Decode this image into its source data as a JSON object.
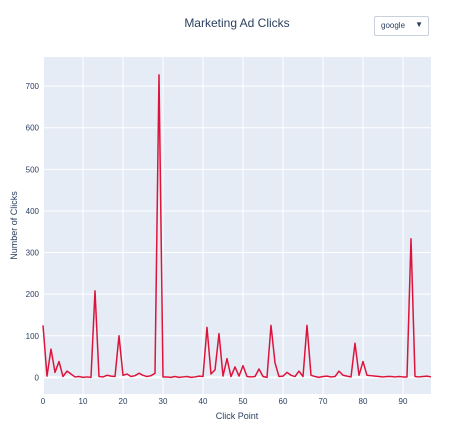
{
  "header": {
    "title": "Marketing Ad Clicks"
  },
  "dropdown": {
    "selected": "google",
    "caret": "▼"
  },
  "colors": {
    "plot_bg": "#e5ecf6",
    "grid": "#ffffff",
    "line": "#dc143c",
    "text": "#2a3f5f"
  },
  "chart_data": {
    "type": "line",
    "title": "Marketing Ad Clicks",
    "xlabel": "Click Point",
    "ylabel": "Number of Clicks",
    "xlim": [
      0,
      97
    ],
    "ylim": [
      -40,
      770
    ],
    "xticks": [
      0,
      10,
      20,
      30,
      40,
      50,
      60,
      70,
      80,
      90
    ],
    "yticks": [
      0,
      100,
      200,
      300,
      400,
      500,
      600,
      700
    ],
    "grid": true,
    "series": [
      {
        "x": [
          0,
          1,
          2,
          3,
          4,
          5,
          6,
          7,
          8,
          9,
          10,
          11,
          12,
          13,
          14,
          15,
          16,
          17,
          18,
          19,
          20,
          21,
          22,
          23,
          24,
          25,
          26,
          27,
          28,
          29,
          30,
          31,
          32,
          33,
          34,
          35,
          36,
          37,
          38,
          39,
          40,
          41,
          42,
          43,
          44,
          45,
          46,
          47,
          48,
          49,
          50,
          51,
          52,
          53,
          54,
          55,
          56,
          57,
          58,
          59,
          60,
          61,
          62,
          63,
          64,
          65,
          66,
          67,
          68,
          69,
          70,
          71,
          72,
          73,
          74,
          75,
          76,
          77,
          78,
          79,
          80,
          81,
          82,
          83,
          84,
          85,
          86,
          87,
          88,
          89,
          90,
          91,
          92,
          93,
          94,
          95,
          96,
          97
        ],
        "values": [
          125,
          3,
          68,
          12,
          38,
          2,
          15,
          8,
          1,
          2,
          0,
          1,
          0,
          208,
          2,
          1,
          5,
          3,
          2,
          100,
          5,
          8,
          2,
          4,
          10,
          5,
          2,
          4,
          10,
          727,
          1,
          1,
          0,
          2,
          0,
          1,
          2,
          0,
          1,
          3,
          2,
          120,
          8,
          18,
          105,
          3,
          45,
          2,
          25,
          3,
          28,
          2,
          1,
          2,
          20,
          2,
          0,
          125,
          35,
          2,
          3,
          12,
          5,
          2,
          15,
          2,
          125,
          5,
          2,
          0,
          2,
          3,
          1,
          2,
          15,
          5,
          3,
          1,
          82,
          5,
          38,
          5,
          4,
          3,
          2,
          1,
          2,
          2,
          1,
          2,
          1,
          1,
          333,
          2,
          1,
          2,
          3,
          1
        ]
      }
    ]
  }
}
